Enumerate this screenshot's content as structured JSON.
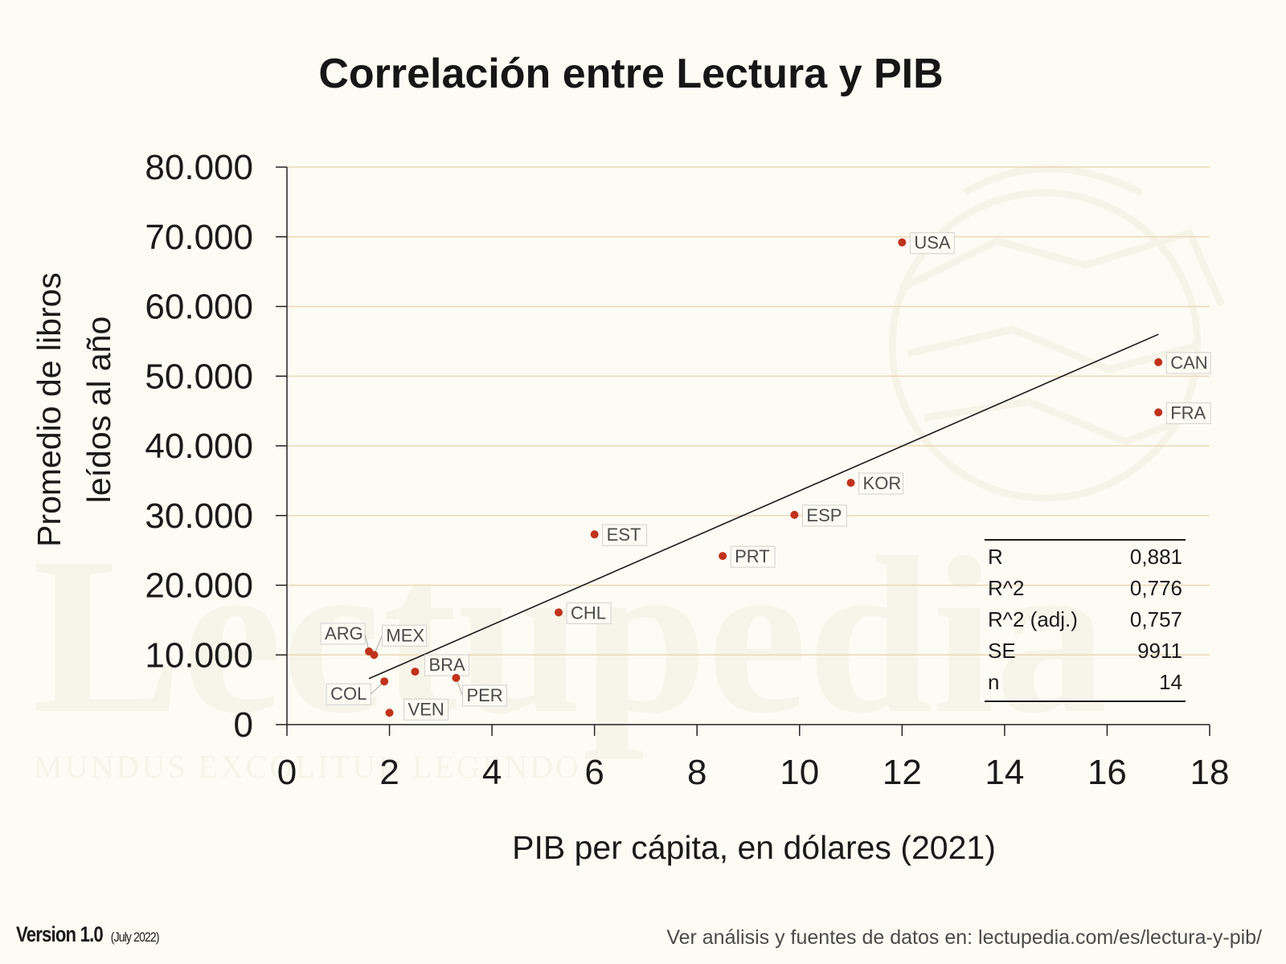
{
  "watermark": {
    "brand": "Lectupedia",
    "motto": "MUNDUS EXCOLITUR LEGENDO"
  },
  "colors": {
    "background": "#fdfcf4",
    "point": "#c1321b",
    "gridline": "#ecd7b6",
    "trend": "#1a1a1a"
  },
  "chart_data": {
    "type": "scatter",
    "title": "Correlación entre Lectura y PIB",
    "xlabel": "PIB per cápita, en dólares (2021)",
    "ylabel": "Promedio de libros leídos al año",
    "ylabel_lines": [
      "Promedio de libros",
      "leídos al año"
    ],
    "xlim": [
      0,
      18
    ],
    "ylim": [
      0,
      80000
    ],
    "x_ticks": [
      0,
      2,
      4,
      6,
      8,
      10,
      12,
      14,
      16,
      18
    ],
    "x_tick_labels": [
      "0",
      "2",
      "4",
      "6",
      "8",
      "10",
      "12",
      "14",
      "16",
      "18"
    ],
    "y_ticks": [
      0,
      10000,
      20000,
      30000,
      40000,
      50000,
      60000,
      70000,
      80000
    ],
    "y_tick_labels": [
      "0",
      "10.000",
      "20.000",
      "30.000",
      "40.000",
      "50.000",
      "60.000",
      "70.000",
      "80.000"
    ],
    "grid": "horizontal",
    "points": [
      {
        "label": "USA",
        "x": 12.0,
        "y": 69200
      },
      {
        "label": "CAN",
        "x": 17.0,
        "y": 52000
      },
      {
        "label": "FRA",
        "x": 17.0,
        "y": 44800
      },
      {
        "label": "KOR",
        "x": 11.0,
        "y": 34700
      },
      {
        "label": "ESP",
        "x": 9.9,
        "y": 30100
      },
      {
        "label": "EST",
        "x": 6.0,
        "y": 27300
      },
      {
        "label": "PRT",
        "x": 8.5,
        "y": 24200
      },
      {
        "label": "CHL",
        "x": 5.3,
        "y": 16100
      },
      {
        "label": "ARG",
        "x": 1.6,
        "y": 10500
      },
      {
        "label": "MEX",
        "x": 1.7,
        "y": 10000
      },
      {
        "label": "BRA",
        "x": 2.5,
        "y": 7600
      },
      {
        "label": "PER",
        "x": 3.3,
        "y": 6700
      },
      {
        "label": "COL",
        "x": 1.9,
        "y": 6200
      },
      {
        "label": "VEN",
        "x": 2.0,
        "y": 1700
      }
    ],
    "trendline": {
      "x": [
        1.6,
        17.0
      ],
      "y": [
        6600,
        56000
      ]
    },
    "stats": [
      {
        "name": "R",
        "value": "0,881"
      },
      {
        "name": "R^2",
        "value": "0,776"
      },
      {
        "name": "R^2 (adj.)",
        "value": "0,757"
      },
      {
        "name": "SE",
        "value": "9911"
      },
      {
        "name": "n",
        "value": "14"
      }
    ]
  },
  "footer": {
    "version": "Version 1.0",
    "date": "(July 2022)",
    "source": "Ver análisis y fuentes de datos en:  lectupedia.com/es/lectura-y-pib/"
  }
}
